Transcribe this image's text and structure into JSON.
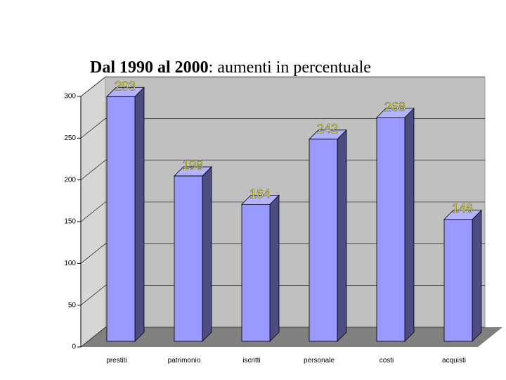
{
  "chart_data": {
    "type": "bar",
    "title": [
      "Dal 1990 al 2000",
      ": aumenti in percentuale"
    ],
    "categories": [
      "prestiti",
      "patrimonio",
      "iscritti",
      "personale",
      "costi",
      "acquisti"
    ],
    "values": [
      293,
      198,
      164,
      242,
      268,
      146
    ],
    "color": "#9999ff",
    "ylim": [
      0,
      300
    ],
    "yticks": [
      0,
      50,
      100,
      150,
      200,
      250,
      300
    ],
    "grid": true
  }
}
